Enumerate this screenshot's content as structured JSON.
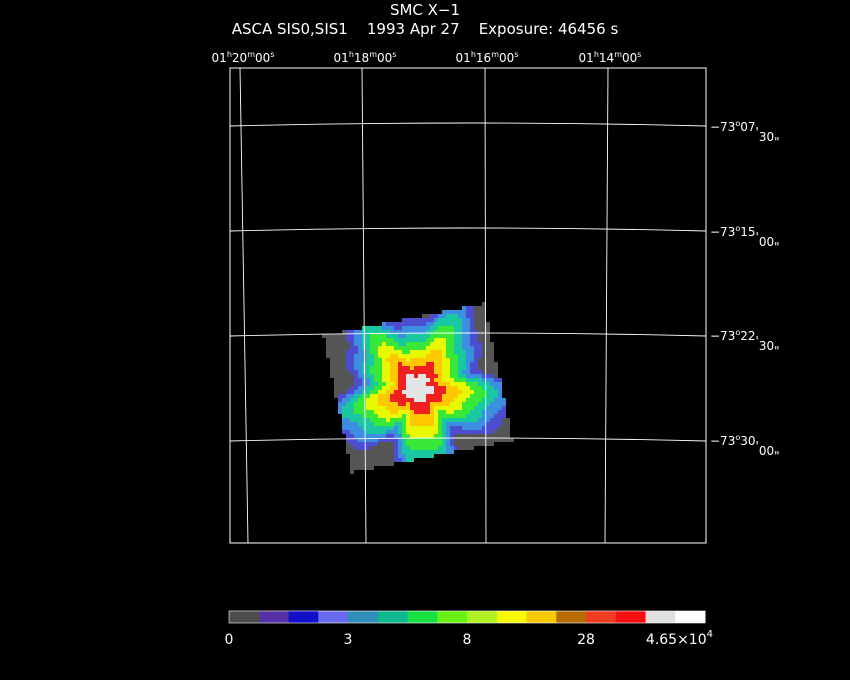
{
  "figure": {
    "title": "SMC X−1",
    "subtitle": "ASCA SIS0,SIS1    1993 Apr 27    Exposure: 46456 s"
  },
  "ra_axis": {
    "labels": [
      {
        "h": "01",
        "m": "20",
        "s": "00"
      },
      {
        "h": "01",
        "m": "18",
        "s": "00"
      },
      {
        "h": "01",
        "m": "16",
        "s": "00"
      },
      {
        "h": "01",
        "m": "14",
        "s": "00"
      }
    ]
  },
  "dec_axis": {
    "labels": [
      {
        "deg": "−73",
        "min": "07",
        "sec": "30"
      },
      {
        "deg": "−73",
        "min": "15",
        "sec": "00"
      },
      {
        "deg": "−73",
        "min": "22",
        "sec": "30"
      },
      {
        "deg": "−73",
        "min": "30",
        "sec": "00"
      }
    ]
  },
  "colorbar": {
    "colors": [
      "#4d4d4d",
      "#5530a8",
      "#1010c8",
      "#6a6af0",
      "#2e8eb8",
      "#10b890",
      "#18e040",
      "#68f010",
      "#b0f020",
      "#f8f800",
      "#f8c800",
      "#b86c00",
      "#f03c20",
      "#f81010",
      "#e0e0e0",
      "#ffffff"
    ],
    "tick_labels": [
      {
        "text": "0",
        "index": 0
      },
      {
        "text": "3",
        "index": 4
      },
      {
        "text": "8",
        "index": 8
      },
      {
        "text": "28",
        "index": 12
      }
    ],
    "max_label": {
      "mantissa": "4.65×10",
      "exponent": "4"
    }
  },
  "image": {
    "level_colors": [
      "#555555",
      "#4d4dd0",
      "#3c8ee0",
      "#19c8a0",
      "#38e838",
      "#e8f800",
      "#ffc800",
      "#f02020",
      "#e4e4e4"
    ]
  }
}
